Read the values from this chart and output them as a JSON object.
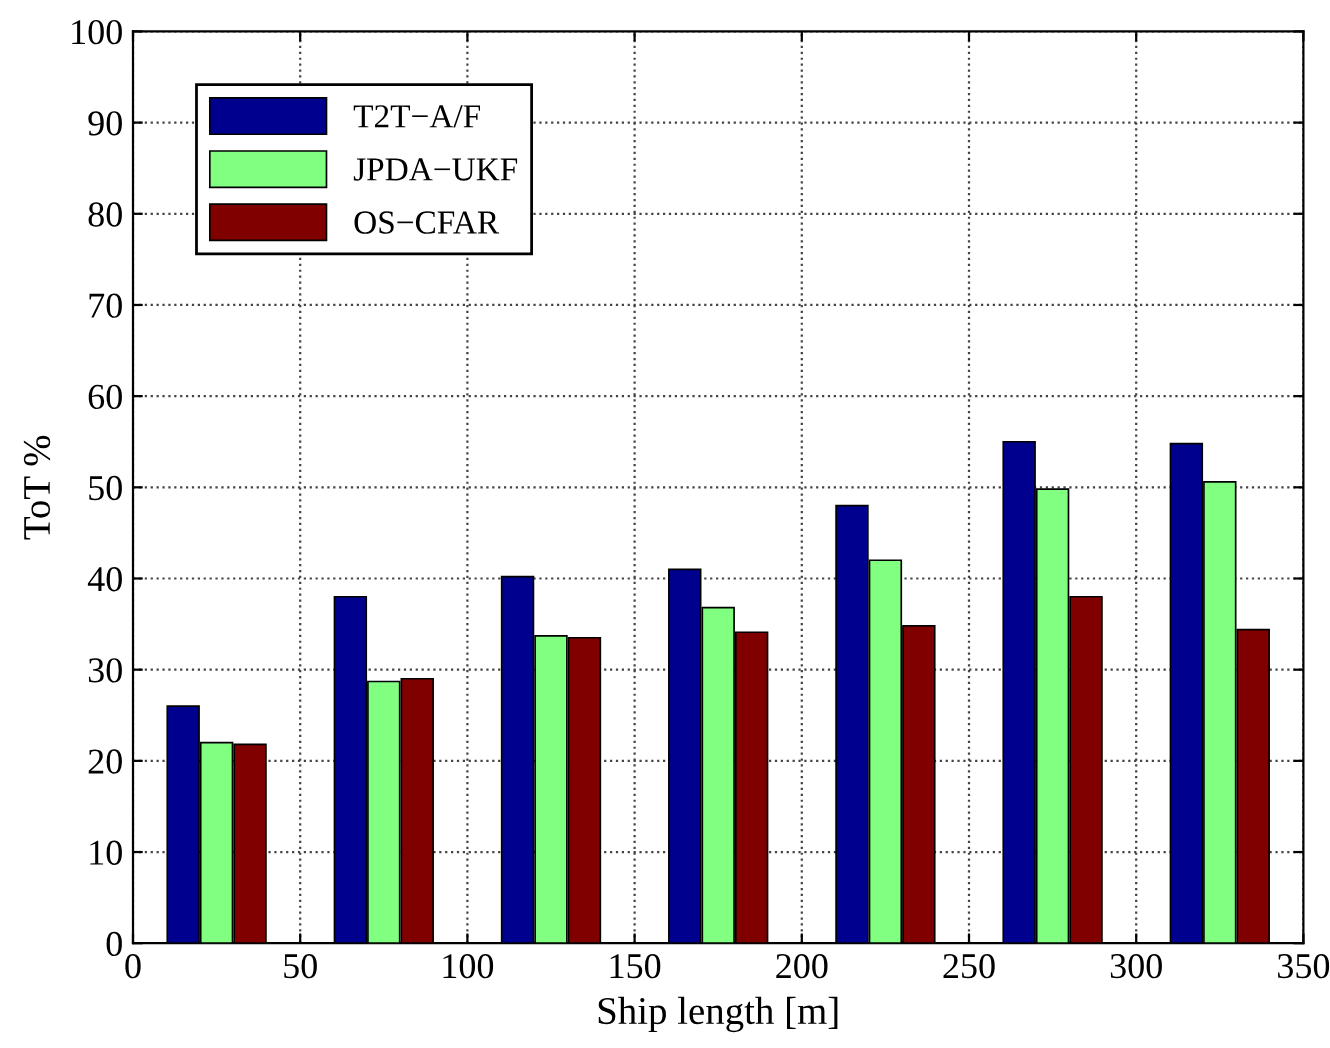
{
  "chart_data": {
    "type": "bar",
    "xlabel": "Ship length [m]",
    "ylabel": "ToT %",
    "x": [
      25,
      75,
      125,
      175,
      225,
      275,
      325
    ],
    "series": [
      {
        "name": "T2T−A/F",
        "color": "#00008f",
        "values": [
          26,
          38,
          40.2,
          41,
          48,
          55,
          54.8
        ]
      },
      {
        "name": "JPDA−UKF",
        "color": "#80ff80",
        "values": [
          22,
          28.7,
          33.7,
          36.8,
          42,
          49.8,
          50.6
        ]
      },
      {
        "name": "OS−CFAR",
        "color": "#800000",
        "values": [
          21.8,
          29,
          33.5,
          34.1,
          34.8,
          38,
          34.4
        ]
      }
    ],
    "xlim": [
      0,
      350
    ],
    "xticks": [
      0,
      50,
      100,
      150,
      200,
      250,
      300,
      350
    ],
    "ylim": [
      0,
      100
    ],
    "yticks": [
      0,
      10,
      20,
      30,
      40,
      50,
      60,
      70,
      80,
      90,
      100
    ],
    "grid": true,
    "legend": "top left"
  }
}
